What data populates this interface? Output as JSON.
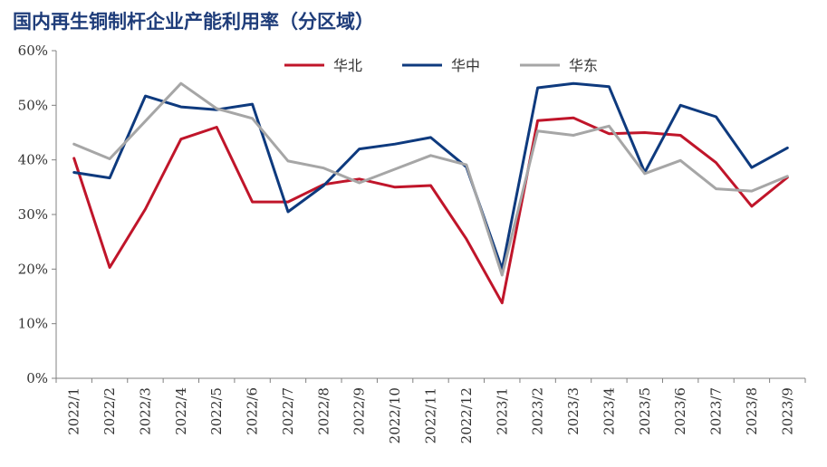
{
  "chart_data": {
    "type": "line",
    "title": "国内再生铜制杆企业产能利用率（分区域）",
    "x": [
      "2022/1",
      "2022/2",
      "2022/3",
      "2022/4",
      "2022/5",
      "2022/6",
      "2022/7",
      "2022/8",
      "2022/9",
      "2022/10",
      "2022/11",
      "2022/12",
      "2023/1",
      "2023/2",
      "2023/3",
      "2023/4",
      "2023/5",
      "2023/6",
      "2023/7",
      "2023/8",
      "2023/9"
    ],
    "ylim": [
      0,
      60
    ],
    "yticks": [
      "0%",
      "10%",
      "20%",
      "30%",
      "40%",
      "50%",
      "60%"
    ],
    "legend_position": "top-center",
    "series": [
      {
        "name": "华北",
        "color": "#c0152a",
        "values": [
          40.3,
          20.3,
          31.0,
          43.8,
          46.0,
          32.3,
          32.3,
          35.5,
          36.5,
          35.0,
          35.3,
          25.5,
          13.8,
          47.2,
          47.7,
          44.8,
          45.0,
          44.5,
          39.5,
          31.5,
          36.8
        ]
      },
      {
        "name": "华中",
        "color": "#0e3a7e",
        "values": [
          37.7,
          36.7,
          51.7,
          49.7,
          49.2,
          50.2,
          30.5,
          35.3,
          42.0,
          42.9,
          44.1,
          38.7,
          20.0,
          53.2,
          54.0,
          53.4,
          37.7,
          50.0,
          47.9,
          38.6,
          42.2
        ]
      },
      {
        "name": "华东",
        "color": "#a6a6a6",
        "values": [
          42.9,
          40.2,
          47.1,
          54.0,
          49.4,
          47.6,
          39.8,
          38.5,
          35.8,
          38.3,
          40.8,
          39.1,
          18.9,
          45.3,
          44.5,
          46.2,
          37.5,
          39.9,
          34.7,
          34.3,
          37.0
        ]
      }
    ]
  }
}
